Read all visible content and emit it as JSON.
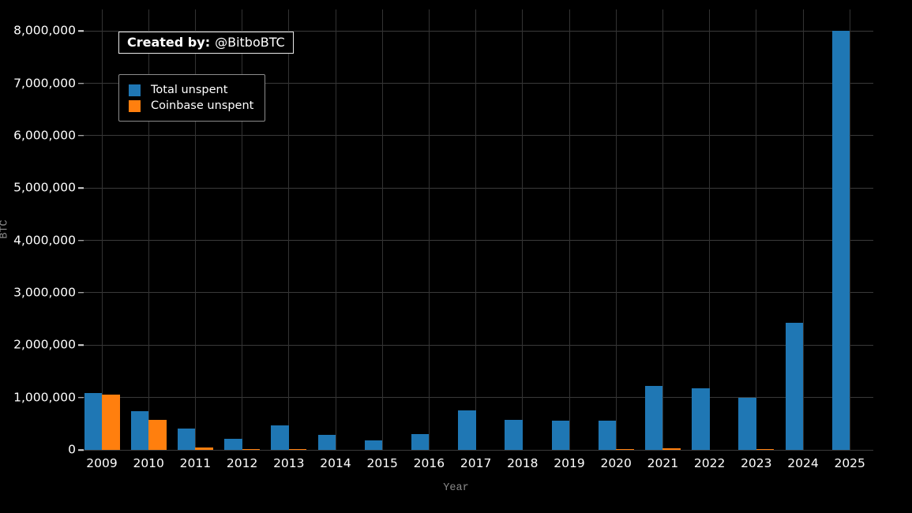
{
  "badge": {
    "prefix": "Created by:",
    "handle": "@BitboBTC"
  },
  "axes": {
    "x_label": "Year",
    "y_label": "BTC"
  },
  "chart_data": {
    "type": "bar",
    "title": "",
    "xlabel": "Year",
    "ylabel": "BTC",
    "categories": [
      "2009",
      "2010",
      "2011",
      "2012",
      "2013",
      "2014",
      "2015",
      "2016",
      "2017",
      "2018",
      "2019",
      "2020",
      "2021",
      "2022",
      "2023",
      "2024",
      "2025"
    ],
    "series": [
      {
        "name": "Total unspent",
        "color": "#1f77b4",
        "values": [
          1080000,
          740000,
          410000,
          210000,
          470000,
          290000,
          175000,
          300000,
          760000,
          570000,
          560000,
          555000,
          1220000,
          1175000,
          1000000,
          2430000,
          8000000
        ]
      },
      {
        "name": "Coinbase unspent",
        "color": "#ff7f0e",
        "values": [
          1050000,
          570000,
          40000,
          15000,
          5000,
          0,
          0,
          0,
          0,
          0,
          0,
          12000,
          25000,
          0,
          10000,
          0,
          0
        ]
      }
    ],
    "yticks": [
      0,
      1000000,
      2000000,
      3000000,
      4000000,
      5000000,
      6000000,
      7000000,
      8000000
    ],
    "ytick_labels": [
      "0",
      "1,000,000",
      "2,000,000",
      "3,000,000",
      "4,000,000",
      "5,000,000",
      "6,000,000",
      "7,000,000",
      "8,000,000"
    ],
    "ylim": [
      0,
      8410000
    ],
    "grid": true,
    "legend_position": "upper-left",
    "colors": {
      "background": "#000000",
      "gridline": "#3a3a3a",
      "tick_label": "#ffffff",
      "axis_label": "#8a8a8a",
      "badge_border": "#e8e8e8",
      "legend_border": "#8c8c8c"
    }
  }
}
